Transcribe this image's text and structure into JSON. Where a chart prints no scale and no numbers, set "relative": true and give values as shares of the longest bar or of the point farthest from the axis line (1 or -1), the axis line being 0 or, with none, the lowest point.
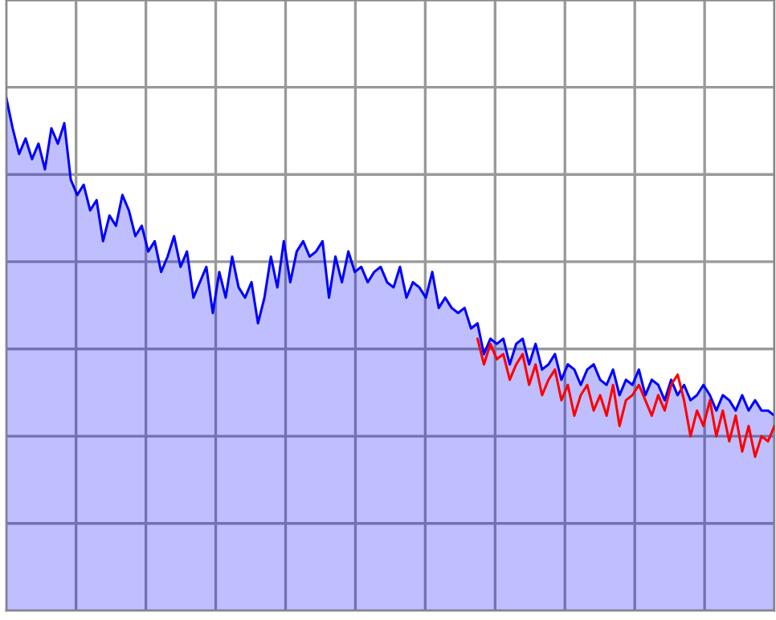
{
  "chart_data": {
    "type": "area",
    "relative": true,
    "grid": true,
    "legend": false,
    "categories": [
      null,
      null,
      null,
      null,
      null,
      null,
      null,
      null,
      null,
      null,
      null,
      null,
      null,
      null,
      null,
      null,
      null,
      null,
      null,
      null,
      null,
      null,
      null,
      null,
      null,
      null,
      null,
      null,
      null,
      null,
      null,
      null,
      null,
      null,
      null,
      null,
      null,
      null,
      null,
      null,
      null,
      null,
      null,
      null,
      null,
      null,
      null,
      null,
      null,
      null,
      null,
      null,
      null,
      null,
      null,
      null,
      null,
      null,
      null,
      null,
      null,
      null,
      null,
      null,
      null,
      null,
      null,
      null,
      null,
      null,
      null,
      null,
      null,
      null,
      null,
      null,
      null,
      null,
      null,
      null,
      null,
      null,
      null,
      null,
      null,
      null,
      null,
      null,
      null,
      null,
      null,
      null,
      null,
      null,
      null,
      null,
      null,
      null,
      null,
      null,
      null,
      null,
      null,
      null,
      null,
      null,
      null,
      null,
      null,
      null,
      null,
      null,
      null,
      null,
      null,
      null,
      null,
      null,
      null,
      null
    ],
    "series": [
      {
        "color": "#0000ff",
        "values": [
          1.0,
          0.94,
          0.89,
          0.92,
          0.88,
          0.91,
          0.86,
          0.94,
          0.91,
          0.95,
          0.84,
          0.81,
          0.83,
          0.78,
          0.8,
          0.72,
          0.77,
          0.75,
          0.81,
          0.78,
          0.73,
          0.75,
          0.7,
          0.72,
          0.66,
          0.69,
          0.73,
          0.67,
          0.7,
          0.61,
          0.64,
          0.67,
          0.58,
          0.66,
          0.61,
          0.69,
          0.63,
          0.61,
          0.64,
          0.56,
          0.61,
          0.69,
          0.63,
          0.72,
          0.64,
          0.7,
          0.72,
          0.69,
          0.7,
          0.72,
          0.61,
          0.69,
          0.64,
          0.7,
          0.66,
          0.67,
          0.64,
          0.66,
          0.67,
          0.64,
          0.63,
          0.67,
          0.61,
          0.64,
          0.63,
          0.61,
          0.66,
          0.59,
          0.61,
          0.59,
          0.58,
          0.59,
          0.55,
          0.56,
          0.5,
          0.53,
          0.52,
          0.53,
          0.48,
          0.52,
          0.53,
          0.48,
          0.52,
          0.47,
          0.48,
          0.5,
          0.45,
          0.48,
          0.47,
          0.44,
          0.47,
          0.48,
          0.45,
          0.44,
          0.47,
          0.42,
          0.45,
          0.44,
          0.47,
          0.42,
          0.45,
          0.44,
          0.41,
          0.45,
          0.42,
          0.44,
          0.41,
          0.42,
          0.44,
          0.42,
          0.39,
          0.42,
          0.41,
          0.39,
          0.42,
          0.39,
          0.41,
          0.39,
          0.39,
          0.38
        ]
      },
      {
        "type": "line",
        "color": "#ff0000",
        "values": [
          null,
          null,
          null,
          null,
          null,
          null,
          null,
          null,
          null,
          null,
          null,
          null,
          null,
          null,
          null,
          null,
          null,
          null,
          null,
          null,
          null,
          null,
          null,
          null,
          null,
          null,
          null,
          null,
          null,
          null,
          null,
          null,
          null,
          null,
          null,
          null,
          null,
          null,
          null,
          null,
          null,
          null,
          null,
          null,
          null,
          null,
          null,
          null,
          null,
          null,
          null,
          null,
          null,
          null,
          null,
          null,
          null,
          null,
          null,
          null,
          null,
          null,
          null,
          null,
          null,
          null,
          null,
          null,
          null,
          null,
          null,
          null,
          null,
          0.53,
          0.48,
          0.52,
          0.49,
          0.5,
          0.45,
          0.48,
          0.5,
          0.44,
          0.48,
          0.42,
          0.45,
          0.47,
          0.41,
          0.44,
          0.38,
          0.42,
          0.44,
          0.39,
          0.42,
          0.38,
          0.44,
          0.36,
          0.41,
          0.42,
          0.44,
          0.41,
          0.38,
          0.42,
          0.39,
          0.44,
          0.46,
          0.41,
          0.34,
          0.39,
          0.36,
          0.41,
          0.34,
          0.39,
          0.33,
          0.38,
          0.31,
          0.36,
          0.3,
          0.34,
          0.33,
          0.36
        ]
      }
    ]
  }
}
